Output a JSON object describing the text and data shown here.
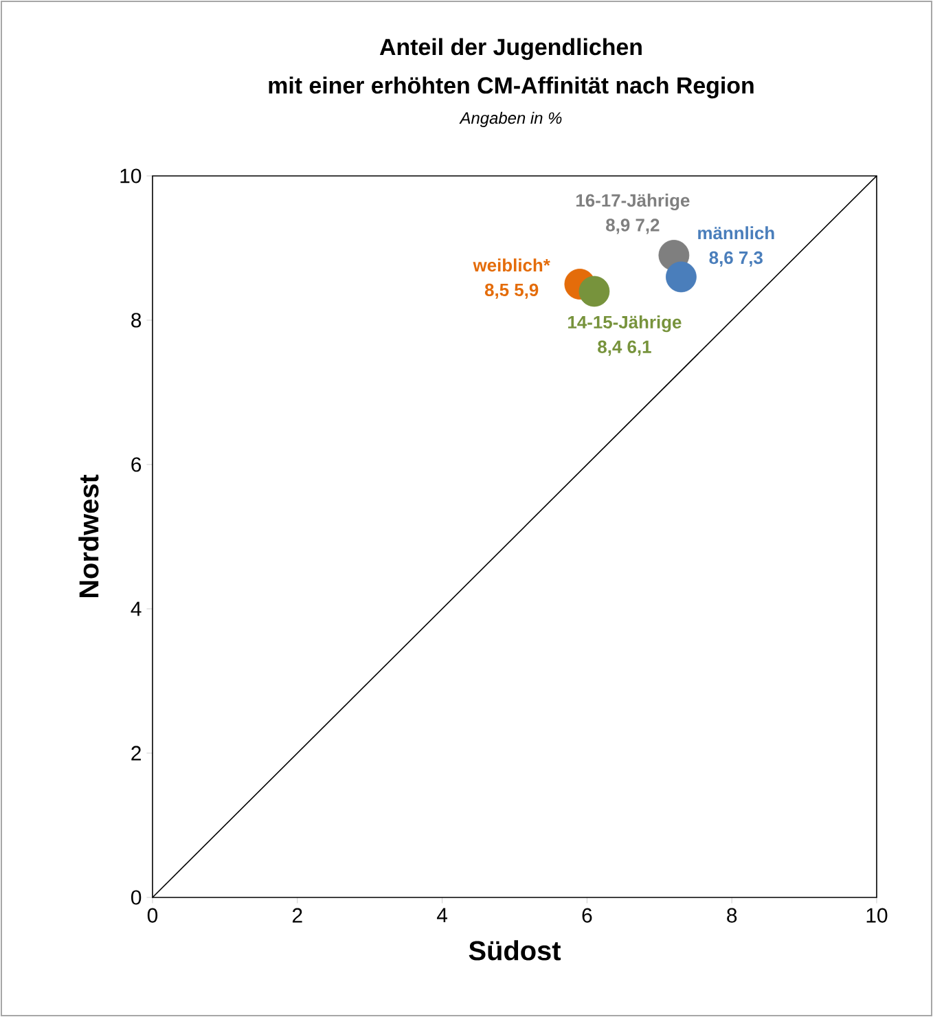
{
  "chart_data": {
    "type": "scatter",
    "title": "Anteil der Jugendlichen",
    "subtitle": "mit einer erhöhten CM-Affinität nach Region",
    "annotations": [
      "Angaben in %"
    ],
    "xlabel": "Südost",
    "ylabel": "Nordwest",
    "xlim": [
      0,
      10
    ],
    "ylim": [
      0,
      10
    ],
    "xticks": [
      0,
      2,
      4,
      6,
      8,
      10
    ],
    "yticks": [
      0,
      2,
      4,
      6,
      8,
      10
    ],
    "grid": false,
    "legend": false,
    "series": [
      {
        "type": "line",
        "color": "#000000",
        "x": [
          0,
          10
        ],
        "values": [
          0,
          10
        ],
        "line_style": "solid",
        "marker": "none"
      },
      {
        "name": "weiblich*",
        "color": "#e46c0a",
        "x": [
          5.9
        ],
        "values": [
          8.5
        ],
        "value_labels": [
          "8,5 5,9"
        ],
        "marker": "circle"
      },
      {
        "name": "14-15-Jährige",
        "color": "#77933c",
        "x": [
          6.1
        ],
        "values": [
          8.4
        ],
        "value_labels": [
          "8,4 6,1"
        ],
        "marker": "circle"
      },
      {
        "name": "16-17-Jährige",
        "color": "#7f7f7f",
        "x": [
          7.2
        ],
        "values": [
          8.9
        ],
        "value_labels": [
          "8,9 7,2"
        ],
        "marker": "circle"
      },
      {
        "name": "männlich",
        "color": "#4a7ebb",
        "x": [
          7.3
        ],
        "values": [
          8.6
        ],
        "value_labels": [
          "8,6 7,3"
        ],
        "marker": "circle"
      }
    ]
  }
}
